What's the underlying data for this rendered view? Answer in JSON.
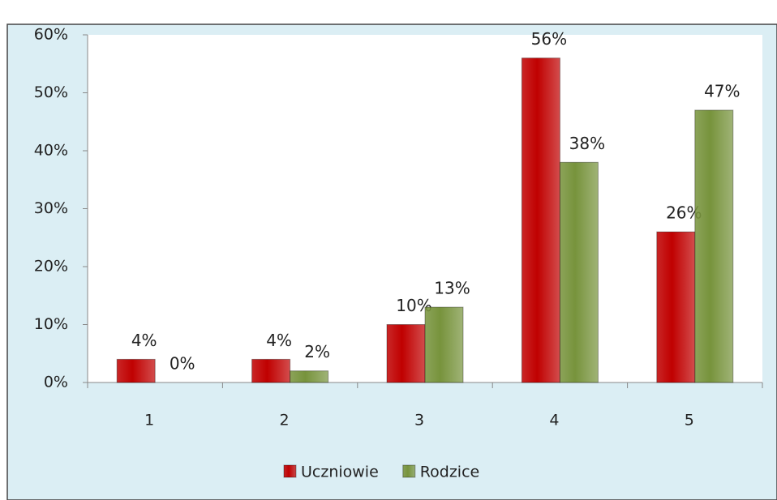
{
  "chart_data": {
    "type": "bar",
    "categories": [
      "1",
      "2",
      "3",
      "4",
      "5"
    ],
    "series": [
      {
        "name": "Uczniowie",
        "color": "#c00000",
        "values": [
          4,
          4,
          10,
          56,
          26
        ],
        "value_labels": [
          "4%",
          "4%",
          "10%",
          "56%",
          "26%"
        ]
      },
      {
        "name": "Rodzice",
        "color": "#77933c",
        "values": [
          0,
          2,
          13,
          38,
          47
        ],
        "value_labels": [
          "0%",
          "2%",
          "13%",
          "38%",
          "47%"
        ]
      }
    ],
    "ylim": [
      0,
      60
    ],
    "yticks": [
      {
        "value": 0,
        "label": "0%"
      },
      {
        "value": 10,
        "label": "10%"
      },
      {
        "value": 20,
        "label": "20%"
      },
      {
        "value": 30,
        "label": "30%"
      },
      {
        "value": 40,
        "label": "40%"
      },
      {
        "value": 50,
        "label": "50%"
      },
      {
        "value": 60,
        "label": "60%"
      }
    ],
    "legend": "bottom"
  }
}
